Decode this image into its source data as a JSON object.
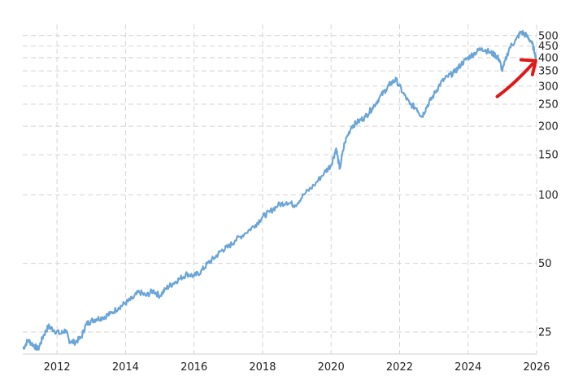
{
  "chart_data": {
    "type": "line",
    "title": "",
    "xlabel": "",
    "ylabel": "",
    "y_scale": "log",
    "ylim": [
      20,
      560
    ],
    "xlim": [
      2011.0,
      2026.0
    ],
    "grid": true,
    "legend": "none",
    "y_ticks": [
      25,
      50,
      100,
      150,
      200,
      250,
      300,
      350,
      400,
      450,
      500
    ],
    "x_ticks": [
      "2012",
      "2014",
      "2016",
      "2018",
      "2020",
      "2022",
      "2024",
      "2026"
    ],
    "series": [
      {
        "color": "#6aa5d8",
        "x": [
          2011.0,
          2011.15,
          2011.3,
          2011.45,
          2011.6,
          2011.75,
          2011.9,
          2012.1,
          2012.25,
          2012.35,
          2012.5,
          2012.7,
          2012.85,
          2013.0,
          2013.15,
          2013.35,
          2013.55,
          2013.8,
          2014.0,
          2014.2,
          2014.4,
          2014.6,
          2014.8,
          2015.0,
          2015.2,
          2015.4,
          2015.6,
          2015.8,
          2016.0,
          2016.2,
          2016.4,
          2016.6,
          2016.8,
          2017.0,
          2017.2,
          2017.5,
          2017.8,
          2018.0,
          2018.2,
          2018.45,
          2018.7,
          2018.95,
          2019.2,
          2019.5,
          2019.8,
          2020.0,
          2020.15,
          2020.25,
          2020.4,
          2020.6,
          2020.8,
          2021.0,
          2021.2,
          2021.4,
          2021.6,
          2021.75,
          2021.9,
          2022.1,
          2022.3,
          2022.5,
          2022.65,
          2022.8,
          2023.0,
          2023.2,
          2023.4,
          2023.6,
          2023.8,
          2024.0,
          2024.2,
          2024.4,
          2024.6,
          2024.8,
          2024.9,
          2025.0,
          2025.2,
          2025.4,
          2025.55,
          2025.7,
          2025.85,
          2025.95,
          2026.05,
          2026.15,
          2026.25
        ],
        "values": [
          21,
          23,
          22,
          21,
          24,
          26.5,
          25.5,
          24.5,
          25.5,
          23,
          22.5,
          23.5,
          27,
          28,
          28.5,
          29,
          30,
          32,
          33.5,
          35,
          37.5,
          36,
          38,
          36,
          39,
          41,
          43,
          45,
          44,
          46,
          50,
          53,
          57,
          59,
          63,
          68,
          74,
          80,
          84,
          90,
          93,
          90,
          100,
          110,
          125,
          135,
          160,
          130,
          170,
          200,
          210,
          220,
          240,
          265,
          290,
          310,
          320,
          280,
          250,
          240,
          220,
          245,
          275,
          310,
          330,
          345,
          375,
          400,
          420,
          440,
          425,
          410,
          395,
          350,
          440,
          480,
          520,
          500,
          470,
          420,
          360,
          390,
          430
        ]
      }
    ]
  },
  "annotation": {
    "type": "arrow",
    "color": "#e01818",
    "from": {
      "x": 2024.85,
      "y": 270
    },
    "to": {
      "x": 2025.95,
      "y": 385
    }
  }
}
